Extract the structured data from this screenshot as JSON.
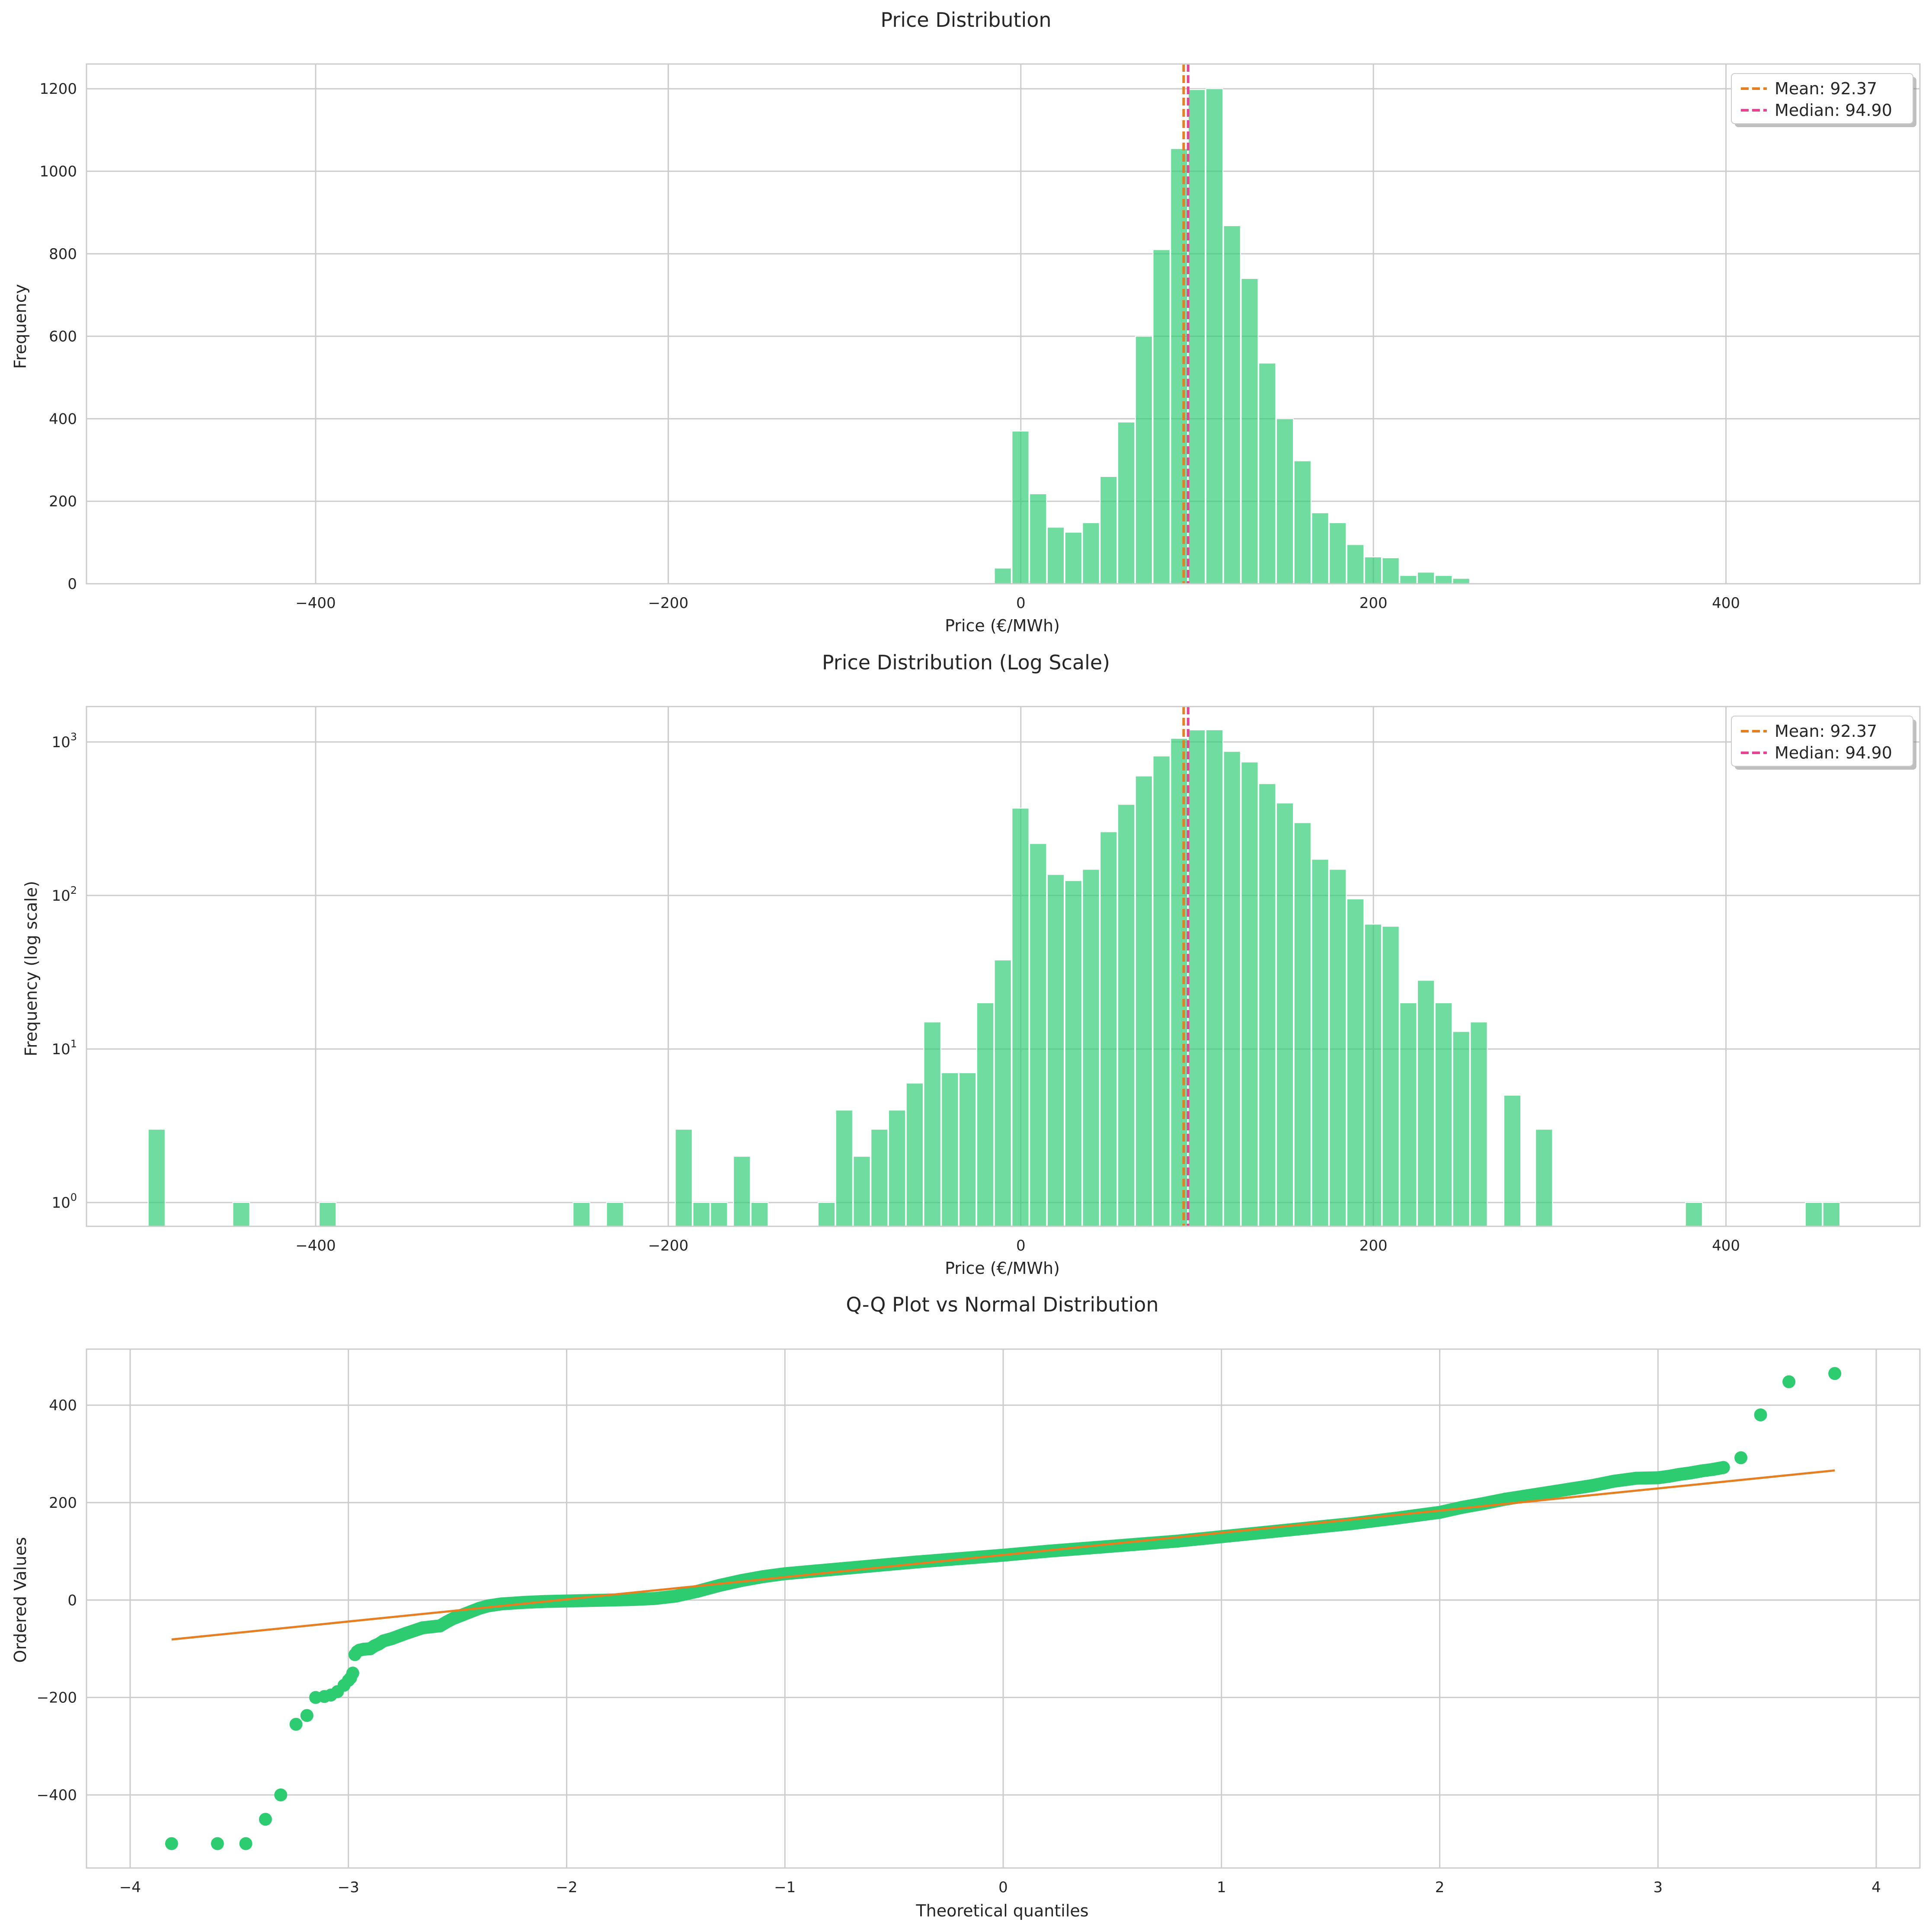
{
  "chart_data": [
    {
      "type": "bar",
      "title": "Price Distribution",
      "xlabel": "Price (€/MWh)",
      "ylabel": "Frequency",
      "xlim": [
        -530,
        510
      ],
      "ylim": [
        0,
        1260
      ],
      "xticks": [
        -400,
        -200,
        0,
        200,
        400
      ],
      "xtick_labels": [
        "−400",
        "−200",
        "0",
        "200",
        "400"
      ],
      "yticks": [
        0,
        200,
        400,
        600,
        800,
        1000,
        1200
      ],
      "ytick_labels": [
        "0",
        "200",
        "400",
        "600",
        "800",
        "1000",
        "1200"
      ],
      "grid": true,
      "bar_color": "#2ecc71",
      "bin_width": 9.6,
      "bins_left": [
        -15,
        -5,
        5,
        15,
        25,
        35,
        45,
        55,
        65,
        75,
        85,
        95,
        105,
        115,
        125,
        135,
        145,
        155,
        165,
        175,
        185,
        195,
        205,
        215,
        225,
        235,
        245
      ],
      "values": [
        38,
        370,
        218,
        137,
        125,
        148,
        260,
        392,
        600,
        810,
        1055,
        1198,
        1200,
        868,
        740,
        535,
        400,
        298,
        172,
        148,
        95,
        65,
        63,
        20,
        28,
        20,
        13
      ],
      "vlines": [
        {
          "label": "Mean: 92.37",
          "x": 92.37,
          "color": "#e67e22"
        },
        {
          "label": "Median: 94.90",
          "x": 94.9,
          "color": "#e84393"
        }
      ],
      "legend": "top-right"
    },
    {
      "type": "bar",
      "title": "Price Distribution (Log Scale)",
      "xlabel": "Price (€/MWh)",
      "ylabel": "Frequency (log scale)",
      "xlim": [
        -530,
        510
      ],
      "yscale": "log",
      "ylim": [
        0.7,
        1700
      ],
      "xticks": [
        -400,
        -200,
        0,
        200,
        400
      ],
      "xtick_labels": [
        "−400",
        "−200",
        "0",
        "200",
        "400"
      ],
      "yticks": [
        1,
        10,
        100,
        1000
      ],
      "ytick_bases": [
        "10",
        "10",
        "10",
        "10"
      ],
      "ytick_exps": [
        "0",
        "1",
        "2",
        "3"
      ],
      "grid": true,
      "bar_color": "#2ecc71",
      "bin_width": 9.6,
      "bins_left": [
        -495,
        -447,
        -398,
        -254,
        -235,
        -196,
        -186,
        -176,
        -163,
        -153,
        -115,
        -105,
        -95,
        -85,
        -75,
        -65,
        -55,
        -45,
        -35,
        -25,
        -15,
        -5,
        5,
        15,
        25,
        35,
        45,
        55,
        65,
        75,
        85,
        95,
        105,
        115,
        125,
        135,
        145,
        155,
        165,
        175,
        185,
        195,
        205,
        215,
        225,
        235,
        245,
        255,
        274,
        292,
        377,
        445,
        455
      ],
      "values": [
        3,
        1,
        1,
        1,
        1,
        3,
        1,
        1,
        2,
        1,
        1,
        4,
        2,
        3,
        4,
        6,
        15,
        7,
        7,
        20,
        38,
        370,
        218,
        137,
        125,
        148,
        260,
        392,
        600,
        810,
        1055,
        1198,
        1200,
        868,
        740,
        535,
        400,
        298,
        172,
        148,
        95,
        65,
        63,
        20,
        28,
        20,
        13,
        15,
        5,
        3,
        1,
        1,
        1
      ],
      "vlines": [
        {
          "label": "Mean: 92.37",
          "x": 92.37,
          "color": "#e67e22"
        },
        {
          "label": "Median: 94.90",
          "x": 94.9,
          "color": "#e84393"
        }
      ],
      "legend": "top-right"
    },
    {
      "type": "scatter",
      "title": "Q-Q Plot vs Normal Distribution",
      "xlabel": "Theoretical quantiles",
      "ylabel": "Ordered Values",
      "xlim": [
        -4.2,
        4.2
      ],
      "ylim": [
        -550,
        515
      ],
      "xticks": [
        -4,
        -3,
        -2,
        -1,
        0,
        1,
        2,
        3,
        4
      ],
      "xtick_labels": [
        "−4",
        "−3",
        "−2",
        "−1",
        "0",
        "1",
        "2",
        "3",
        "4"
      ],
      "yticks": [
        -400,
        -200,
        0,
        200,
        400
      ],
      "ytick_labels": [
        "−400",
        "−200",
        "0",
        "200",
        "400"
      ],
      "grid": true,
      "point_color": "#2ecc71",
      "line_color": "#e67e22",
      "points": [
        [
          -3.81,
          -500
        ],
        [
          -3.6,
          -500
        ],
        [
          -3.47,
          -500
        ],
        [
          -3.38,
          -450
        ],
        [
          -3.31,
          -400
        ],
        [
          -3.24,
          -255
        ],
        [
          -3.19,
          -237
        ],
        [
          -3.15,
          -200
        ],
        [
          -3.11,
          -198
        ],
        [
          -3.08,
          -195
        ],
        [
          -3.05,
          -188
        ],
        [
          -3.02,
          -175
        ],
        [
          -3.0,
          -165
        ],
        [
          -2.99,
          -160
        ],
        [
          -2.98,
          -150
        ],
        [
          -2.97,
          -112
        ],
        [
          -2.96,
          -106
        ],
        [
          -2.95,
          -103
        ],
        [
          -2.93,
          -101
        ],
        [
          -2.9,
          -100
        ],
        [
          -2.88,
          -94
        ],
        [
          -2.86,
          -90
        ],
        [
          -2.84,
          -84
        ],
        [
          -2.8,
          -79
        ],
        [
          -2.77,
          -74
        ],
        [
          -2.74,
          -69
        ],
        [
          -2.7,
          -63
        ],
        [
          -2.66,
          -57
        ],
        [
          -2.62,
          -55
        ],
        [
          -2.58,
          -53
        ],
        [
          -2.55,
          -45
        ],
        [
          -2.52,
          -38
        ],
        [
          -2.48,
          -31
        ],
        [
          -2.44,
          -24
        ],
        [
          -2.4,
          -17
        ],
        [
          -2.36,
          -12
        ],
        [
          -2.3,
          -8
        ],
        [
          -2.2,
          -5
        ],
        [
          -2.1,
          -3
        ],
        [
          -2.0,
          -2
        ],
        [
          -1.9,
          -1
        ],
        [
          -1.8,
          0
        ],
        [
          -1.7,
          1
        ],
        [
          -1.6,
          3
        ],
        [
          -1.5,
          8
        ],
        [
          -1.4,
          18
        ],
        [
          -1.3,
          30
        ],
        [
          -1.2,
          40
        ],
        [
          -1.1,
          48
        ],
        [
          -1.0,
          54
        ],
        [
          -0.8,
          62
        ],
        [
          -0.6,
          70
        ],
        [
          -0.4,
          78
        ],
        [
          -0.2,
          85
        ],
        [
          0.0,
          92
        ],
        [
          0.2,
          100
        ],
        [
          0.4,
          107
        ],
        [
          0.6,
          114
        ],
        [
          0.8,
          121
        ],
        [
          1.0,
          130
        ],
        [
          1.2,
          139
        ],
        [
          1.4,
          148
        ],
        [
          1.6,
          157
        ],
        [
          1.8,
          168
        ],
        [
          2.0,
          180
        ],
        [
          2.1,
          190
        ],
        [
          2.2,
          198
        ],
        [
          2.3,
          207
        ],
        [
          2.4,
          214
        ],
        [
          2.5,
          221
        ],
        [
          2.6,
          228
        ],
        [
          2.7,
          235
        ],
        [
          2.8,
          244
        ],
        [
          2.9,
          250
        ],
        [
          3.0,
          251
        ],
        [
          3.05,
          254
        ],
        [
          3.1,
          258
        ],
        [
          3.15,
          261
        ],
        [
          3.2,
          265
        ],
        [
          3.25,
          268
        ],
        [
          3.3,
          272
        ],
        [
          3.38,
          292
        ],
        [
          3.47,
          380
        ],
        [
          3.6,
          448
        ],
        [
          3.81,
          465
        ]
      ],
      "fit_line": [
        [
          -3.81,
          -81
        ],
        [
          3.81,
          266
        ]
      ]
    }
  ]
}
